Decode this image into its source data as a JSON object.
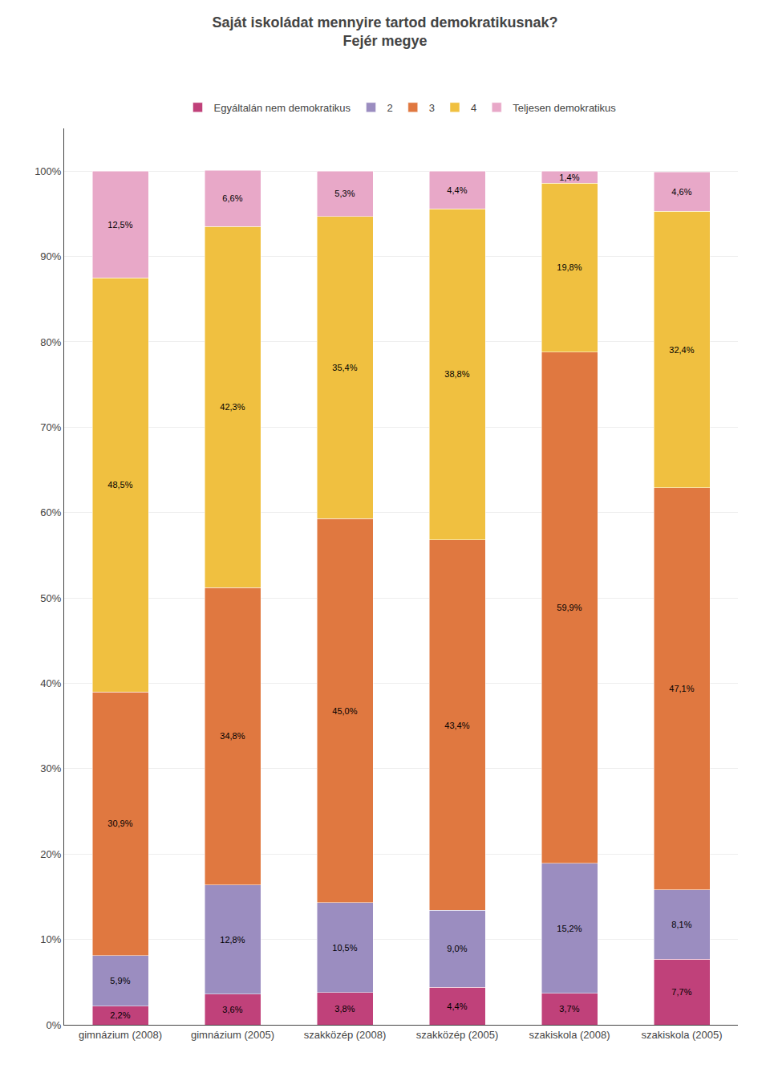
{
  "chart_data": {
    "type": "bar",
    "stacked": true,
    "title": "Saját iskoládat mennyire tartod demokratikusnak?",
    "subtitle": "Fejér megye",
    "categories": [
      "gimnázium (2008)",
      "gimnázium (2005)",
      "szakközép (2008)",
      "szakközép (2005)",
      "szakiskola (2008)",
      "szakiskola (2005)"
    ],
    "series": [
      {
        "name": "Egyáltalán nem demokratikus",
        "color": "#C0417A",
        "values": [
          2.2,
          3.6,
          3.8,
          4.4,
          3.7,
          7.7
        ],
        "value_labels": [
          "2,2%",
          "3,6%",
          "3,8%",
          "4,4%",
          "3,7%",
          "7,7%"
        ]
      },
      {
        "name": "2",
        "color": "#9B8DC0",
        "values": [
          5.9,
          12.8,
          10.5,
          9.0,
          15.2,
          8.1
        ],
        "value_labels": [
          "5,9%",
          "12,8%",
          "10,5%",
          "9,0%",
          "15,2%",
          "8,1%"
        ]
      },
      {
        "name": "3",
        "color": "#E07840",
        "values": [
          30.9,
          34.8,
          45.0,
          43.4,
          59.9,
          47.1
        ],
        "value_labels": [
          "30,9%",
          "34,8%",
          "45,0%",
          "43,4%",
          "59,9%",
          "47,1%"
        ]
      },
      {
        "name": "4",
        "color": "#F0C040",
        "values": [
          48.5,
          42.3,
          35.4,
          38.8,
          19.8,
          32.4
        ],
        "value_labels": [
          "48,5%",
          "42,3%",
          "35,4%",
          "38,8%",
          "19,8%",
          "32,4%"
        ]
      },
      {
        "name": "Teljesen demokratikus",
        "color": "#E8A8C8",
        "values": [
          12.5,
          6.6,
          5.3,
          4.4,
          1.4,
          4.6
        ],
        "value_labels": [
          "12,5%",
          "6,6%",
          "5,3%",
          "4,4%",
          "1,4%",
          "4,6%"
        ]
      }
    ],
    "ylim": [
      0,
      105
    ],
    "yticks": [
      {
        "value": 0,
        "label": "0%"
      },
      {
        "value": 10,
        "label": "10%"
      },
      {
        "value": 20,
        "label": "20%"
      },
      {
        "value": 30,
        "label": "30%"
      },
      {
        "value": 40,
        "label": "40%"
      },
      {
        "value": 50,
        "label": "50%"
      },
      {
        "value": 60,
        "label": "60%"
      },
      {
        "value": 70,
        "label": "70%"
      },
      {
        "value": 80,
        "label": "80%"
      },
      {
        "value": 90,
        "label": "90%"
      },
      {
        "value": 100,
        "label": "100%"
      }
    ],
    "grid": true,
    "legend": "top",
    "data_labels": true
  }
}
